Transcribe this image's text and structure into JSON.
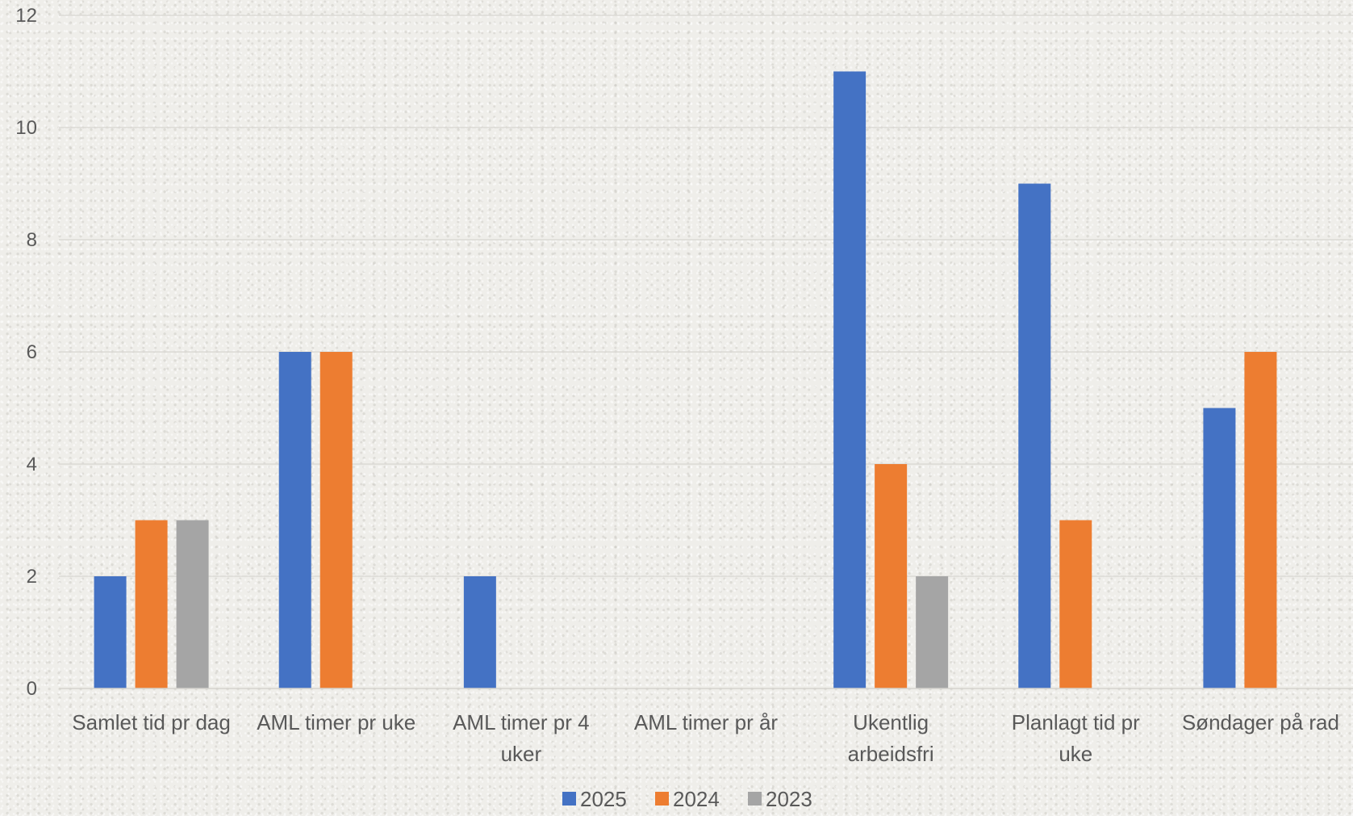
{
  "chart_data": {
    "type": "bar",
    "categories": [
      [
        "Samlet tid pr dag"
      ],
      [
        "AML timer pr uke"
      ],
      [
        "AML timer pr 4",
        "uker"
      ],
      [
        "AML timer pr år"
      ],
      [
        "Ukentlig",
        "arbeidsfri"
      ],
      [
        "Planlagt tid pr",
        "uke"
      ],
      [
        "Søndager på rad"
      ]
    ],
    "series": [
      {
        "name": "2025",
        "color": "#4472c4",
        "values": [
          2,
          6,
          2,
          0,
          11,
          9,
          5
        ]
      },
      {
        "name": "2024",
        "color": "#ed7d31",
        "values": [
          3,
          6,
          0,
          0,
          4,
          3,
          6
        ]
      },
      {
        "name": "2023",
        "color": "#a5a5a5",
        "values": [
          3,
          0,
          0,
          0,
          2,
          0,
          0
        ]
      }
    ],
    "ylim": [
      0,
      12
    ],
    "yticks": [
      0,
      2,
      4,
      6,
      8,
      10,
      12
    ],
    "grid": true,
    "legend": "bottom-center",
    "title": "",
    "xlabel": "",
    "ylabel": ""
  }
}
